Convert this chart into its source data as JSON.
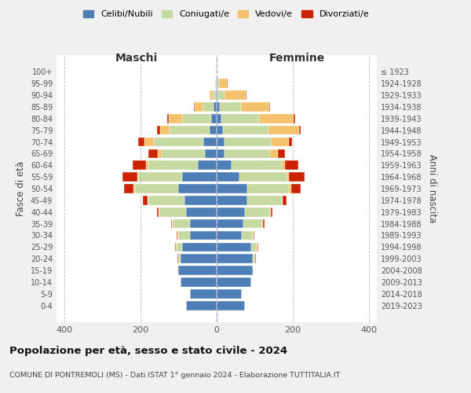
{
  "age_groups": [
    "0-4",
    "5-9",
    "10-14",
    "15-19",
    "20-24",
    "25-29",
    "30-34",
    "35-39",
    "40-44",
    "45-49",
    "50-54",
    "55-59",
    "60-64",
    "65-69",
    "70-74",
    "75-79",
    "80-84",
    "85-89",
    "90-94",
    "95-99",
    "100+"
  ],
  "birth_years": [
    "2019-2023",
    "2014-2018",
    "2009-2013",
    "2004-2008",
    "1999-2003",
    "1994-1998",
    "1989-1993",
    "1984-1988",
    "1979-1983",
    "1974-1978",
    "1969-1973",
    "1964-1968",
    "1959-1963",
    "1954-1958",
    "1949-1953",
    "1944-1948",
    "1939-1943",
    "1934-1938",
    "1929-1933",
    "1924-1928",
    "≤ 1923"
  ],
  "colors": {
    "celibe": "#4d7eb5",
    "coniugato": "#c5d9a0",
    "vedovo": "#f5c26b",
    "divorziato": "#cc2200"
  },
  "maschi": {
    "celibe": [
      80,
      70,
      95,
      100,
      95,
      90,
      70,
      70,
      80,
      85,
      100,
      90,
      50,
      30,
      35,
      18,
      15,
      8,
      3,
      1,
      1
    ],
    "coniugato": [
      0,
      0,
      0,
      2,
      5,
      15,
      30,
      45,
      70,
      95,
      115,
      115,
      130,
      115,
      130,
      105,
      75,
      30,
      8,
      2,
      0
    ],
    "vedovo": [
      0,
      0,
      0,
      0,
      1,
      2,
      2,
      2,
      2,
      2,
      3,
      3,
      5,
      10,
      25,
      25,
      35,
      20,
      8,
      2,
      0
    ],
    "divorziato": [
      0,
      0,
      0,
      0,
      1,
      2,
      2,
      3,
      5,
      12,
      25,
      40,
      35,
      25,
      15,
      8,
      4,
      2,
      0,
      0,
      0
    ]
  },
  "femmine": {
    "celibe": [
      75,
      65,
      90,
      95,
      95,
      90,
      65,
      70,
      75,
      80,
      80,
      60,
      40,
      20,
      20,
      16,
      12,
      8,
      3,
      2,
      1
    ],
    "coniugato": [
      0,
      0,
      0,
      2,
      5,
      15,
      30,
      50,
      65,
      90,
      110,
      125,
      130,
      120,
      125,
      120,
      100,
      55,
      18,
      5,
      0
    ],
    "vedovo": [
      0,
      0,
      0,
      0,
      1,
      2,
      2,
      2,
      2,
      2,
      5,
      5,
      10,
      20,
      45,
      80,
      90,
      75,
      55,
      20,
      2
    ],
    "divorziato": [
      0,
      0,
      0,
      0,
      1,
      2,
      2,
      3,
      5,
      12,
      25,
      40,
      35,
      20,
      8,
      5,
      3,
      3,
      3,
      2,
      0
    ]
  },
  "title": "Popolazione per età, sesso e stato civile - 2024",
  "subtitle": "COMUNE DI PONTREMOLI (MS) - Dati ISTAT 1° gennaio 2024 - Elaborazione TUTTITALIA.IT",
  "xlabel_left": "Maschi",
  "xlabel_right": "Femmine",
  "ylabel": "Fasce di età",
  "ylabel_right": "Anni di nascita",
  "legend_labels": [
    "Celibi/Nubili",
    "Coniugati/e",
    "Vedovi/e",
    "Divorziati/e"
  ],
  "xlim": 420,
  "bg_color": "#f0f0f0",
  "plot_bg": "#ffffff",
  "grid_color": "#bbbbbb"
}
